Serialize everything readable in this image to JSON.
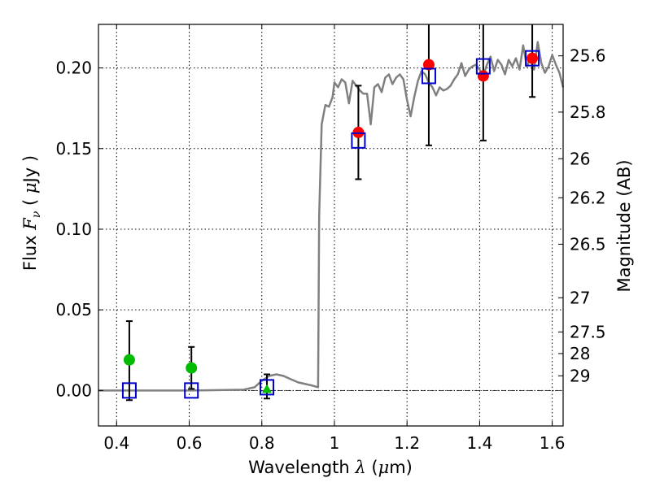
{
  "chart_data": {
    "type": "scatter",
    "xlabel": "Wavelength  λ (μm)",
    "xlabel_parts": {
      "pre": "Wavelength  ",
      "var": "λ",
      "post": " (",
      "mu": "μ",
      "unit": "m)"
    },
    "ylabel": "Flux  F_ν  ( μJy )",
    "ylabel_parts": {
      "pre": "Flux  ",
      "var": "F",
      "sub": "ν",
      "mid": "  ( ",
      "mu": "μ",
      "post": "Jy )"
    },
    "ylabel_right": "Magnitude (AB)",
    "xlim": [
      0.35,
      1.63
    ],
    "ylim": [
      -0.022,
      0.227
    ],
    "grid": true,
    "x_ticks": [
      0.4,
      0.6,
      0.8,
      1.0,
      1.2,
      1.4,
      1.6
    ],
    "x_tick_labels": [
      "0.4",
      "0.6",
      "0.8",
      "1",
      "1.2",
      "1.4",
      "1.6"
    ],
    "y_ticks": [
      0.0,
      0.05,
      0.1,
      0.15,
      0.2
    ],
    "y_tick_labels": [
      "0.00",
      "0.05",
      "0.10",
      "0.15",
      "0.20"
    ],
    "right_ticks": [
      {
        "label": "25.6",
        "flux": 0.2075
      },
      {
        "label": "25.8",
        "flux": 0.1726
      },
      {
        "label": "26",
        "flux": 0.1437
      },
      {
        "label": "26.2",
        "flux": 0.1195
      },
      {
        "label": "26.5",
        "flux": 0.0907
      },
      {
        "label": "27",
        "flux": 0.0575
      },
      {
        "label": "27.5",
        "flux": 0.0363
      },
      {
        "label": "28",
        "flux": 0.0229
      },
      {
        "label": "29",
        "flux": 0.0091
      }
    ],
    "colors": {
      "model": "#808080",
      "observed": "#ff0000",
      "upper_limit": "#00bb00",
      "model_flux": "#0000cc",
      "errorbar": "#000000",
      "zero_line": "#000000",
      "grid": "#000000"
    },
    "model_spectrum": {
      "x": [
        0.35,
        0.6,
        0.75,
        0.78,
        0.8,
        0.82,
        0.84,
        0.86,
        0.88,
        0.9,
        0.92,
        0.94,
        0.955,
        0.958,
        0.965,
        0.975,
        0.985,
        0.995,
        1.0,
        1.01,
        1.02,
        1.03,
        1.04,
        1.05,
        1.06,
        1.07,
        1.08,
        1.09,
        1.1,
        1.11,
        1.12,
        1.13,
        1.14,
        1.15,
        1.16,
        1.17,
        1.18,
        1.19,
        1.2,
        1.21,
        1.22,
        1.23,
        1.24,
        1.25,
        1.26,
        1.27,
        1.28,
        1.29,
        1.3,
        1.31,
        1.32,
        1.33,
        1.34,
        1.35,
        1.36,
        1.37,
        1.38,
        1.39,
        1.4,
        1.41,
        1.42,
        1.43,
        1.44,
        1.45,
        1.46,
        1.47,
        1.48,
        1.49,
        1.5,
        1.51,
        1.52,
        1.53,
        1.54,
        1.55,
        1.56,
        1.57,
        1.58,
        1.59,
        1.6,
        1.61,
        1.62,
        1.63
      ],
      "y": [
        0.0,
        0.0,
        0.0005,
        0.002,
        0.006,
        0.009,
        0.01,
        0.009,
        0.007,
        0.005,
        0.004,
        0.003,
        0.002,
        0.108,
        0.165,
        0.177,
        0.176,
        0.182,
        0.191,
        0.188,
        0.193,
        0.191,
        0.178,
        0.192,
        0.189,
        0.186,
        0.184,
        0.184,
        0.165,
        0.188,
        0.19,
        0.185,
        0.194,
        0.196,
        0.19,
        0.194,
        0.196,
        0.193,
        0.18,
        0.17,
        0.182,
        0.192,
        0.198,
        0.196,
        0.191,
        0.188,
        0.183,
        0.188,
        0.186,
        0.187,
        0.189,
        0.193,
        0.196,
        0.203,
        0.195,
        0.199,
        0.201,
        0.202,
        0.199,
        0.195,
        0.202,
        0.207,
        0.198,
        0.205,
        0.202,
        0.196,
        0.205,
        0.201,
        0.206,
        0.199,
        0.214,
        0.201,
        0.206,
        0.199,
        0.216,
        0.203,
        0.197,
        0.201,
        0.208,
        0.202,
        0.197,
        0.188
      ]
    },
    "observed_flux": {
      "x": [
        1.066,
        1.26,
        1.41,
        1.545
      ],
      "y": [
        0.16,
        0.202,
        0.195,
        0.206
      ],
      "err_low": [
        0.131,
        0.152,
        0.155,
        0.182
      ],
      "err_high": [
        0.189,
        0.227,
        0.227,
        0.227
      ]
    },
    "upper_limits": {
      "x": [
        0.435,
        0.606,
        0.814
      ],
      "y": [
        0.019,
        0.014,
        0.001
      ],
      "markers": [
        "circle",
        "circle",
        "triangle"
      ],
      "err_low": [
        -0.006,
        0.001,
        -0.005
      ],
      "err_high": [
        0.043,
        0.027,
        0.01
      ]
    },
    "model_flux_squares": {
      "x": [
        0.435,
        0.606,
        0.814,
        1.066,
        1.26,
        1.41,
        1.545
      ],
      "y": [
        0.0,
        0.0,
        0.002,
        0.155,
        0.195,
        0.201,
        0.206
      ]
    }
  }
}
